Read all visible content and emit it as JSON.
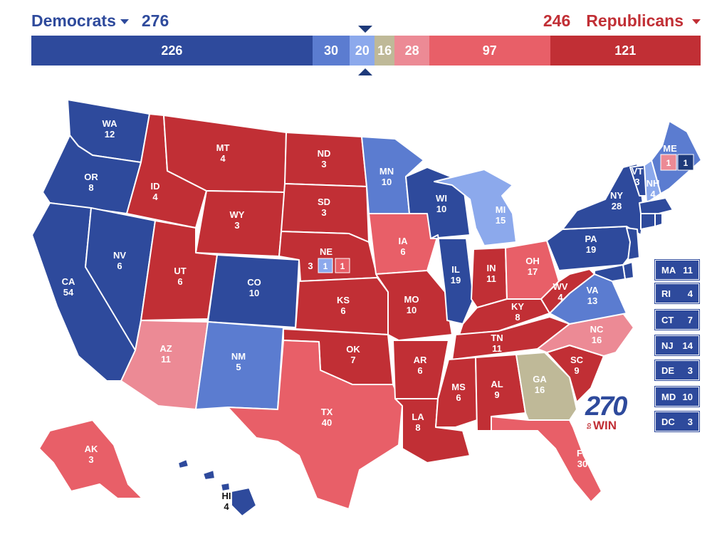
{
  "header": {
    "dem_label": "Democrats",
    "dem_total": "276",
    "rep_label": "Republicans",
    "rep_total": "246"
  },
  "bar": [
    {
      "value": "226",
      "votes": 226,
      "color": "#2e4a9c"
    },
    {
      "value": "30",
      "votes": 30,
      "color": "#5b7cd0"
    },
    {
      "value": "20",
      "votes": 20,
      "color": "#8ca9ec"
    },
    {
      "value": "16",
      "votes": 16,
      "color": "#bfb998"
    },
    {
      "value": "28",
      "votes": 28,
      "color": "#ec8a95"
    },
    {
      "value": "97",
      "votes": 97,
      "color": "#e85f68"
    },
    {
      "value": "121",
      "votes": 121,
      "color": "#c12f35"
    }
  ],
  "colors": {
    "safe_dem": "#2e4a9c",
    "likely_dem": "#5b7cd0",
    "lean_dem": "#8ca9ec",
    "tossup": "#bfb998",
    "lean_rep": "#ec8a95",
    "likely_rep": "#e85f68",
    "safe_rep": "#c12f35"
  },
  "states": [
    {
      "abbr": "WA",
      "ev": "12",
      "rating": "safe_dem"
    },
    {
      "abbr": "OR",
      "ev": "8",
      "rating": "safe_dem"
    },
    {
      "abbr": "CA",
      "ev": "54",
      "rating": "safe_dem"
    },
    {
      "abbr": "NV",
      "ev": "6",
      "rating": "safe_dem"
    },
    {
      "abbr": "ID",
      "ev": "4",
      "rating": "safe_rep"
    },
    {
      "abbr": "MT",
      "ev": "4",
      "rating": "safe_rep"
    },
    {
      "abbr": "WY",
      "ev": "3",
      "rating": "safe_rep"
    },
    {
      "abbr": "UT",
      "ev": "6",
      "rating": "safe_rep"
    },
    {
      "abbr": "CO",
      "ev": "10",
      "rating": "safe_dem"
    },
    {
      "abbr": "AZ",
      "ev": "11",
      "rating": "lean_rep"
    },
    {
      "abbr": "NM",
      "ev": "5",
      "rating": "likely_dem"
    },
    {
      "abbr": "ND",
      "ev": "3",
      "rating": "safe_rep"
    },
    {
      "abbr": "SD",
      "ev": "3",
      "rating": "safe_rep"
    },
    {
      "abbr": "NE",
      "ev": "",
      "rating": "safe_rep"
    },
    {
      "abbr": "KS",
      "ev": "6",
      "rating": "safe_rep"
    },
    {
      "abbr": "OK",
      "ev": "7",
      "rating": "safe_rep"
    },
    {
      "abbr": "TX",
      "ev": "40",
      "rating": "likely_rep"
    },
    {
      "abbr": "MN",
      "ev": "10",
      "rating": "likely_dem"
    },
    {
      "abbr": "IA",
      "ev": "6",
      "rating": "likely_rep"
    },
    {
      "abbr": "MO",
      "ev": "10",
      "rating": "safe_rep"
    },
    {
      "abbr": "AR",
      "ev": "6",
      "rating": "safe_rep"
    },
    {
      "abbr": "LA",
      "ev": "8",
      "rating": "safe_rep"
    },
    {
      "abbr": "WI",
      "ev": "10",
      "rating": "safe_dem"
    },
    {
      "abbr": "IL",
      "ev": "19",
      "rating": "safe_dem"
    },
    {
      "abbr": "MI",
      "ev": "15",
      "rating": "lean_dem"
    },
    {
      "abbr": "IN",
      "ev": "11",
      "rating": "safe_rep"
    },
    {
      "abbr": "OH",
      "ev": "17",
      "rating": "likely_rep"
    },
    {
      "abbr": "KY",
      "ev": "8",
      "rating": "safe_rep"
    },
    {
      "abbr": "TN",
      "ev": "11",
      "rating": "safe_rep"
    },
    {
      "abbr": "MS",
      "ev": "6",
      "rating": "safe_rep"
    },
    {
      "abbr": "AL",
      "ev": "9",
      "rating": "safe_rep"
    },
    {
      "abbr": "GA",
      "ev": "16",
      "rating": "tossup"
    },
    {
      "abbr": "FL",
      "ev": "30",
      "rating": "likely_rep"
    },
    {
      "abbr": "SC",
      "ev": "9",
      "rating": "safe_rep"
    },
    {
      "abbr": "NC",
      "ev": "16",
      "rating": "lean_rep"
    },
    {
      "abbr": "VA",
      "ev": "13",
      "rating": "likely_dem"
    },
    {
      "abbr": "WV",
      "ev": "4",
      "rating": "safe_rep"
    },
    {
      "abbr": "PA",
      "ev": "19",
      "rating": "safe_dem"
    },
    {
      "abbr": "NY",
      "ev": "28",
      "rating": "safe_dem"
    },
    {
      "abbr": "VT",
      "ev": "3",
      "rating": "safe_dem"
    },
    {
      "abbr": "NH",
      "ev": "4",
      "rating": "lean_dem"
    },
    {
      "abbr": "ME",
      "ev": "",
      "rating": "likely_dem"
    },
    {
      "abbr": "AK",
      "ev": "3",
      "rating": "likely_rep"
    },
    {
      "abbr": "HI",
      "ev": "4",
      "rating": "safe_dem"
    }
  ],
  "splits": {
    "ne_state": "3",
    "ne_d1": "1",
    "ne_d2": "1",
    "me_d2": "1",
    "me_d1": "1"
  },
  "small_states": [
    {
      "abbr": "MA",
      "ev": "11"
    },
    {
      "abbr": "RI",
      "ev": "4"
    },
    {
      "abbr": "CT",
      "ev": "7"
    },
    {
      "abbr": "NJ",
      "ev": "14"
    },
    {
      "abbr": "DE",
      "ev": "3"
    },
    {
      "abbr": "MD",
      "ev": "10"
    },
    {
      "abbr": "DC",
      "ev": "3"
    }
  ],
  "logo": {
    "num": "270",
    "to": "to",
    "win": "WIN"
  }
}
